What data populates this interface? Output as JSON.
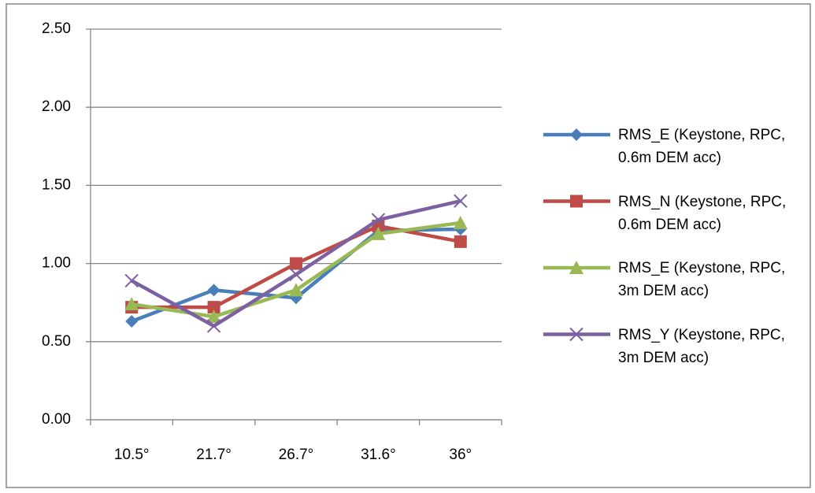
{
  "chart_data": {
    "type": "line",
    "categories": [
      "10.5°",
      "21.7°",
      "26.7°",
      "31.6°",
      "36°"
    ],
    "series": [
      {
        "name": "RMS_E (Keystone, RPC, 0.6m DEM acc)",
        "color": "#4a7ebb",
        "marker": "diamond",
        "values": [
          0.63,
          0.83,
          0.78,
          1.21,
          1.22
        ]
      },
      {
        "name": "RMS_N (Keystone, RPC, 0.6m DEM acc)",
        "color": "#be4b48",
        "marker": "square",
        "values": [
          0.72,
          0.72,
          1.0,
          1.24,
          1.14
        ]
      },
      {
        "name": "RMS_E (Keystone, RPC, 3m DEM acc)",
        "color": "#98b954",
        "marker": "triangle",
        "values": [
          0.74,
          0.66,
          0.83,
          1.19,
          1.26
        ]
      },
      {
        "name": "RMS_Y (Keystone, RPC, 3m DEM acc)",
        "color": "#7d60a0",
        "marker": "x",
        "values": [
          0.89,
          0.6,
          0.93,
          1.28,
          1.4
        ]
      }
    ],
    "ylim": [
      0,
      2.5
    ],
    "yticks": [
      {
        "value": 0,
        "label": "0.00"
      },
      {
        "value": 0.5,
        "label": "0.50"
      },
      {
        "value": 1,
        "label": "1.00"
      },
      {
        "value": 1.5,
        "label": "1.50"
      },
      {
        "value": 2,
        "label": "2.00"
      },
      {
        "value": 2.5,
        "label": "2.50"
      }
    ],
    "grid": true,
    "legend": "right"
  }
}
